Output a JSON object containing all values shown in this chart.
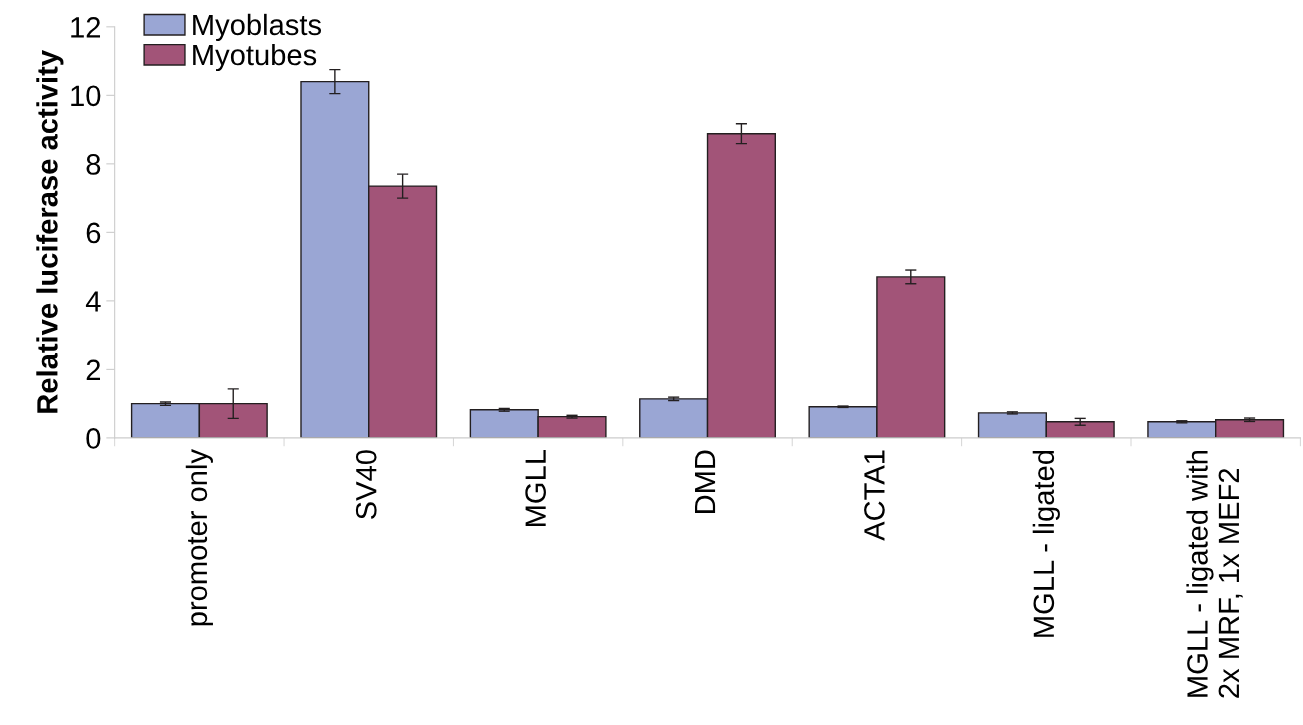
{
  "chart_data": {
    "type": "bar",
    "ylabel": "Relative luciferase activity",
    "categories": [
      "promoter only",
      "SV40",
      "MGLL",
      "DMD",
      "ACTA1",
      "MGLL - ligated",
      "MGLL - ligated with\n2x MRF, 1x MEF2"
    ],
    "series": [
      {
        "name": "Myoblasts",
        "color": "#9aa6d4",
        "values": [
          1.0,
          10.4,
          0.82,
          1.14,
          0.91,
          0.73,
          0.47
        ],
        "errors": [
          0.05,
          0.35,
          0.04,
          0.05,
          0.02,
          0.03,
          0.03
        ]
      },
      {
        "name": "Myotubes",
        "color": "#a25478",
        "values": [
          1.0,
          7.35,
          0.62,
          8.88,
          4.7,
          0.47,
          0.53
        ],
        "errors": [
          0.43,
          0.35,
          0.04,
          0.29,
          0.2,
          0.1,
          0.05
        ]
      }
    ],
    "ylim": [
      0,
      12
    ],
    "yticks": [
      0,
      2,
      4,
      6,
      8,
      10,
      12
    ],
    "grid": false,
    "legend": "top left"
  }
}
